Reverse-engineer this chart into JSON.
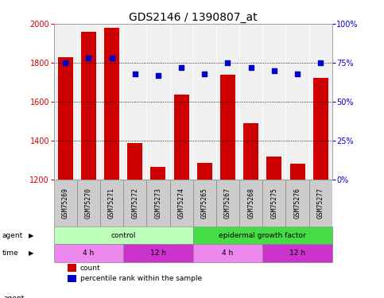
{
  "title": "GDS2146 / 1390807_at",
  "samples": [
    "GSM75269",
    "GSM75270",
    "GSM75271",
    "GSM75272",
    "GSM75273",
    "GSM75274",
    "GSM75265",
    "GSM75267",
    "GSM75268",
    "GSM75275",
    "GSM75276",
    "GSM75277"
  ],
  "counts": [
    1830,
    1960,
    1980,
    1385,
    1265,
    1635,
    1285,
    1740,
    1490,
    1315,
    1280,
    1720
  ],
  "percentiles": [
    75,
    78,
    78,
    68,
    67,
    72,
    68,
    75,
    72,
    70,
    68,
    75
  ],
  "ylim_left": [
    1200,
    2000
  ],
  "ylim_right": [
    0,
    100
  ],
  "yticks_left": [
    1200,
    1400,
    1600,
    1800,
    2000
  ],
  "yticks_right": [
    0,
    25,
    50,
    75,
    100
  ],
  "ytick_labels_right": [
    "0%",
    "25%",
    "50%",
    "75%",
    "100%"
  ],
  "bar_color": "#cc0000",
  "dot_color": "#0000cc",
  "agent_groups": [
    {
      "label": "control",
      "start": 0,
      "end": 6,
      "color": "#bbffbb"
    },
    {
      "label": "epidermal growth factor",
      "start": 6,
      "end": 12,
      "color": "#44dd44"
    }
  ],
  "time_groups": [
    {
      "label": "4 h",
      "start": 0,
      "end": 3,
      "color": "#ee88ee"
    },
    {
      "label": "12 h",
      "start": 3,
      "end": 6,
      "color": "#cc33cc"
    },
    {
      "label": "4 h",
      "start": 6,
      "end": 9,
      "color": "#ee88ee"
    },
    {
      "label": "12 h",
      "start": 9,
      "end": 12,
      "color": "#cc33cc"
    }
  ],
  "legend_items": [
    {
      "label": "count",
      "color": "#cc0000"
    },
    {
      "label": "percentile rank within the sample",
      "color": "#0000cc"
    }
  ],
  "title_fontsize": 10,
  "axis_color_left": "#cc0000",
  "axis_color_right": "#0000cc",
  "bg_color": "#ffffff",
  "sample_box_color": "#cccccc",
  "plot_area_color": "#f0f0f0"
}
